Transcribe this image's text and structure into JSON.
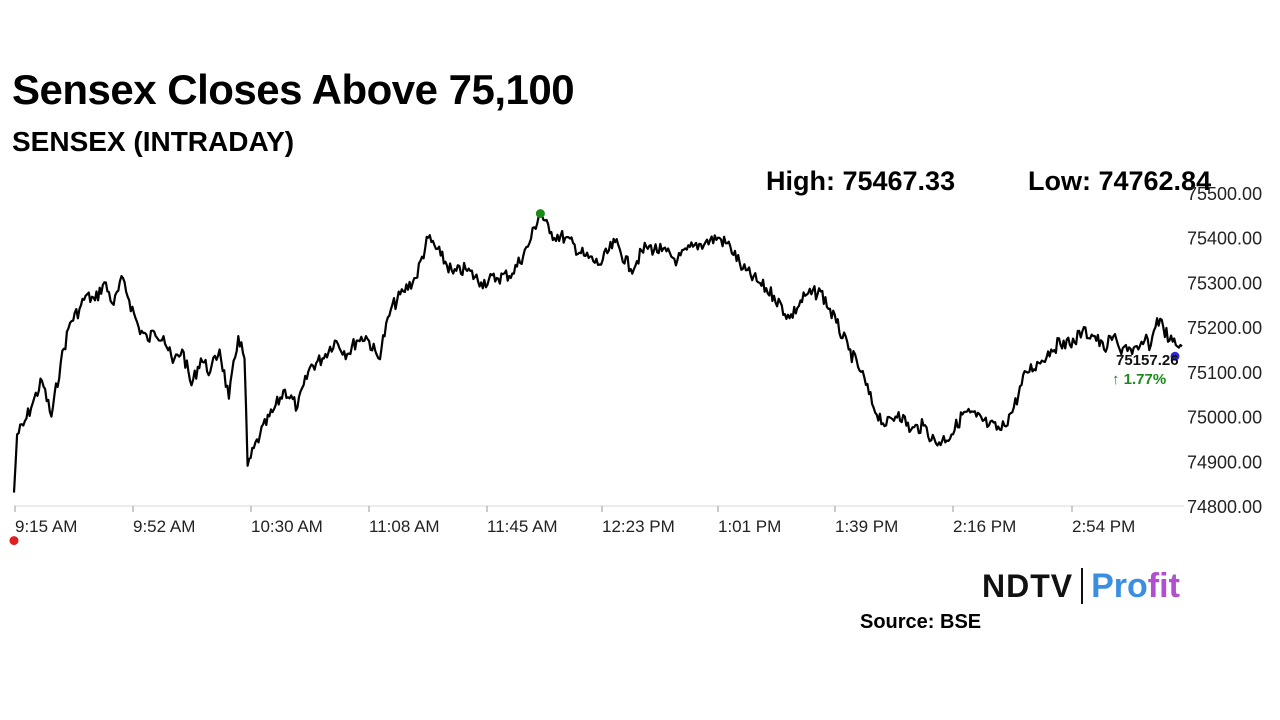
{
  "header": {
    "title": "Sensex Closes Above 75,100",
    "subtitle": "SENSEX (INTRADAY)",
    "high_text": "High: 75467.33",
    "low_text": "Low: 74762.84"
  },
  "footer": {
    "brand_left": "NDTV",
    "brand_right_a": "Pro",
    "brand_right_b": "fit",
    "source": "Source: BSE"
  },
  "colors": {
    "line": "#000000",
    "low_marker": "#e02020",
    "high_marker": "#1a8a1a",
    "last_marker": "#2a2ad6",
    "change_positive": "#1a8a1a",
    "grid": "#d9d9d9"
  },
  "chart_data": {
    "type": "line",
    "title": "SENSEX (INTRADAY)",
    "xlabel": "",
    "ylabel": "",
    "ylim": [
      74800,
      75500
    ],
    "grid": false,
    "yticks": [
      74800,
      74900,
      75000,
      75100,
      75200,
      75300,
      75400,
      75500
    ],
    "ytick_labels": [
      "74800.00",
      "74900.00",
      "75000.00",
      "75100.00",
      "75200.00",
      "75300.00",
      "75400.00",
      "75500.00"
    ],
    "xticks": [
      "9:15 AM",
      "9:52 AM",
      "10:30 AM",
      "11:08 AM",
      "11:45 AM",
      "12:23 PM",
      "1:01 PM",
      "1:39 PM",
      "2:16 PM",
      "2:54 PM"
    ],
    "series": [
      {
        "name": "",
        "x": [
          "9:15 AM",
          "9:16 AM",
          "9:18 AM",
          "9:21 AM",
          "9:24 AM",
          "9:27 AM",
          "9:30 AM",
          "9:33 AM",
          "9:36 AM",
          "9:38 AM",
          "9:41 AM",
          "9:44 AM",
          "9:47 AM",
          "9:50 AM",
          "9:52 AM",
          "9:55 AM",
          "9:58 AM",
          "10:00 AM",
          "10:03 AM",
          "10:06 AM",
          "10:09 AM",
          "10:12 AM",
          "10:15 AM",
          "10:18 AM",
          "10:21 AM",
          "10:24 AM",
          "10:27 AM",
          "10:29 AM",
          "10:30 AM",
          "10:34 AM",
          "10:38 AM",
          "10:42 AM",
          "10:46 AM",
          "10:50 AM",
          "10:54 AM",
          "10:58 AM",
          "11:02 AM",
          "11:05 AM",
          "11:08 AM",
          "11:12 AM",
          "11:16 AM",
          "11:20 AM",
          "11:24 AM",
          "11:28 AM",
          "11:32 AM",
          "11:36 AM",
          "11:40 AM",
          "11:45 AM",
          "11:50 AM",
          "11:55 AM",
          "12:00 PM",
          "12:04 PM",
          "12:07 PM",
          "12:12 PM",
          "12:18 PM",
          "12:23 PM",
          "12:28 PM",
          "12:33 PM",
          "12:38 PM",
          "12:43 PM",
          "12:48 PM",
          "12:53 PM",
          "12:57 PM",
          "1:01 PM",
          "1:05 PM",
          "1:09 PM",
          "1:14 PM",
          "1:19 PM",
          "1:24 PM",
          "1:29 PM",
          "1:34 PM",
          "1:39 PM",
          "1:43 PM",
          "1:47 PM",
          "1:51 PM",
          "1:55 PM",
          "1:59 PM",
          "2:03 PM",
          "2:07 PM",
          "2:11 PM",
          "2:16 PM",
          "2:20 PM",
          "2:24 PM",
          "2:28 PM",
          "2:32 PM",
          "2:36 PM",
          "2:40 PM",
          "2:44 PM",
          "2:48 PM",
          "2:52 PM",
          "2:54 PM",
          "2:58 PM",
          "3:02 PM",
          "3:05 PM",
          "3:08 PM",
          "3:10 PM",
          "3:12 PM",
          "3:14 PM",
          "3:16 PM",
          "3:18 PM",
          "3:20 PM",
          "3:22 PM",
          "3:24 PM",
          "3:26 PM",
          "3:28 PM",
          "3:30 PM"
        ],
        "values": [
          74830,
          74960,
          74980,
          75030,
          75080,
          75000,
          75120,
          75210,
          75240,
          75270,
          75260,
          75300,
          75250,
          75310,
          75260,
          75200,
          75170,
          75190,
          75180,
          75120,
          75150,
          75070,
          75130,
          75100,
          75150,
          75040,
          75180,
          75130,
          74890,
          74960,
          75010,
          75060,
          75020,
          75110,
          75130,
          75170,
          75140,
          75170,
          75180,
          75130,
          75240,
          75280,
          75310,
          75400,
          75360,
          75320,
          75330,
          75300,
          75310,
          75320,
          75380,
          75460,
          75410,
          75400,
          75360,
          75340,
          75390,
          75330,
          75380,
          75370,
          75350,
          75380,
          75390,
          75400,
          75380,
          75330,
          75300,
          75270,
          75220,
          75270,
          75280,
          75210,
          75150,
          75100,
          75020,
          74980,
          75010,
          74970,
          74980,
          74940,
          74960,
          75010,
          75000,
          74980,
          74970,
          75020,
          75100,
          75120,
          75150,
          75170,
          75160,
          75190,
          75180,
          75150,
          75180,
          75150,
          75160,
          75140,
          75150,
          75170,
          75160,
          75220,
          75200,
          75170,
          75160,
          75157.26
        ]
      }
    ],
    "high": {
      "value": 75467.33,
      "label": "High: 75467.33"
    },
    "low": {
      "value": 74762.84,
      "label": "Low: 74762.84"
    },
    "last": {
      "value": "75157.26",
      "change": "↑ 1.77%"
    }
  }
}
